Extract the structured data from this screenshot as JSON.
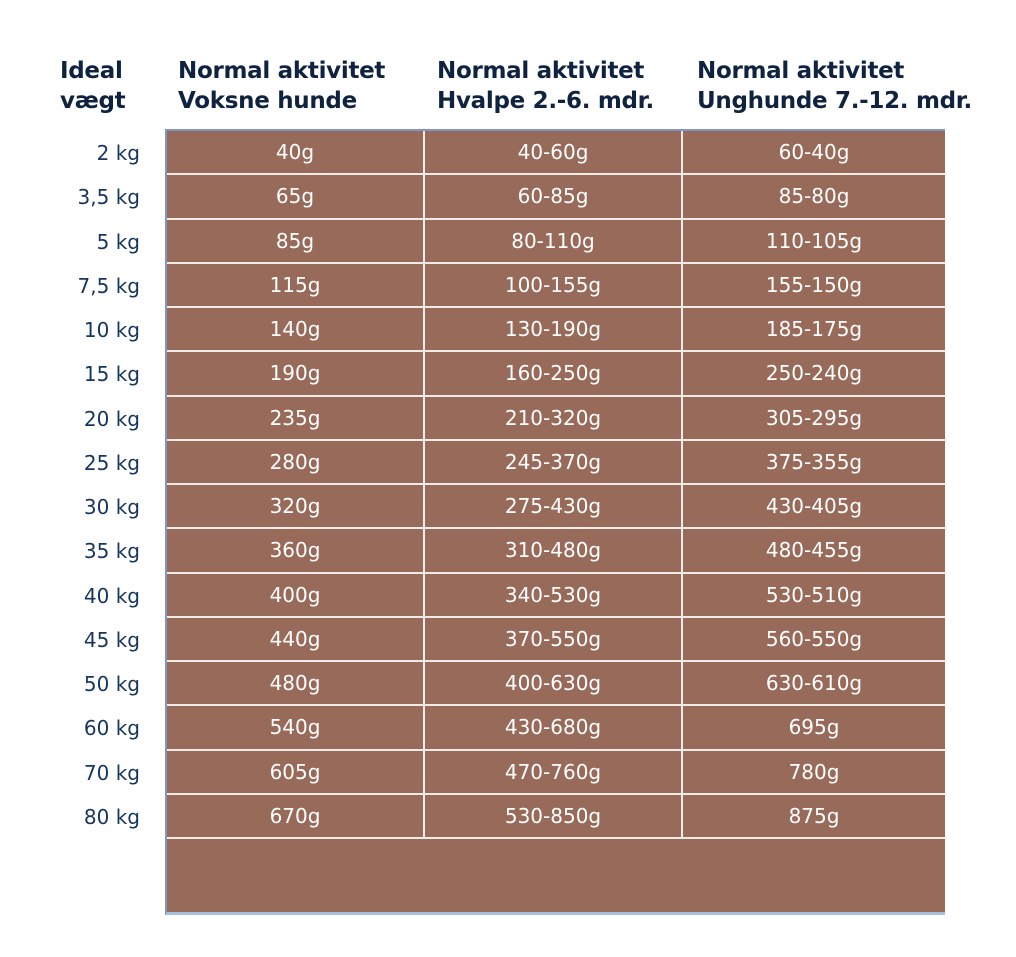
{
  "headers": {
    "weight": [
      "Ideal",
      "vægt"
    ],
    "adult": [
      "Normal aktivitet",
      "Voksne hunde"
    ],
    "puppy": [
      "Normal aktivitet",
      "Hvalpe 2.-6. mdr."
    ],
    "junior": [
      "Normal aktivitet",
      "Unghunde 7.-12. mdr."
    ]
  },
  "colors": {
    "cell_bg": "#986a5a",
    "header_text": "#0f2340",
    "weight_text": "#16365f"
  },
  "rows": [
    {
      "weight": "2 kg",
      "adult": "40g",
      "puppy": "40-60g",
      "junior": "60-40g"
    },
    {
      "weight": "3,5 kg",
      "adult": "65g",
      "puppy": "60-85g",
      "junior": "85-80g"
    },
    {
      "weight": "5 kg",
      "adult": "85g",
      "puppy": "80-110g",
      "junior": "110-105g"
    },
    {
      "weight": "7,5 kg",
      "adult": "115g",
      "puppy": "100-155g",
      "junior": "155-150g"
    },
    {
      "weight": "10 kg",
      "adult": "140g",
      "puppy": "130-190g",
      "junior": "185-175g"
    },
    {
      "weight": "15 kg",
      "adult": "190g",
      "puppy": "160-250g",
      "junior": "250-240g"
    },
    {
      "weight": "20 kg",
      "adult": "235g",
      "puppy": "210-320g",
      "junior": "305-295g"
    },
    {
      "weight": "25 kg",
      "adult": "280g",
      "puppy": "245-370g",
      "junior": "375-355g"
    },
    {
      "weight": "30 kg",
      "adult": "320g",
      "puppy": "275-430g",
      "junior": "430-405g"
    },
    {
      "weight": "35 kg",
      "adult": "360g",
      "puppy": "310-480g",
      "junior": "480-455g"
    },
    {
      "weight": "40 kg",
      "adult": "400g",
      "puppy": "340-530g",
      "junior": "530-510g"
    },
    {
      "weight": "45 kg",
      "adult": "440g",
      "puppy": "370-550g",
      "junior": "560-550g"
    },
    {
      "weight": "50 kg",
      "adult": "480g",
      "puppy": "400-630g",
      "junior": "630-610g"
    },
    {
      "weight": "60 kg",
      "adult": "540g",
      "puppy": "430-680g",
      "junior": "695g"
    },
    {
      "weight": "70 kg",
      "adult": "605g",
      "puppy": "470-760g",
      "junior": "780g"
    },
    {
      "weight": "80 kg",
      "adult": "670g",
      "puppy": "530-850g",
      "junior": "875g"
    }
  ]
}
